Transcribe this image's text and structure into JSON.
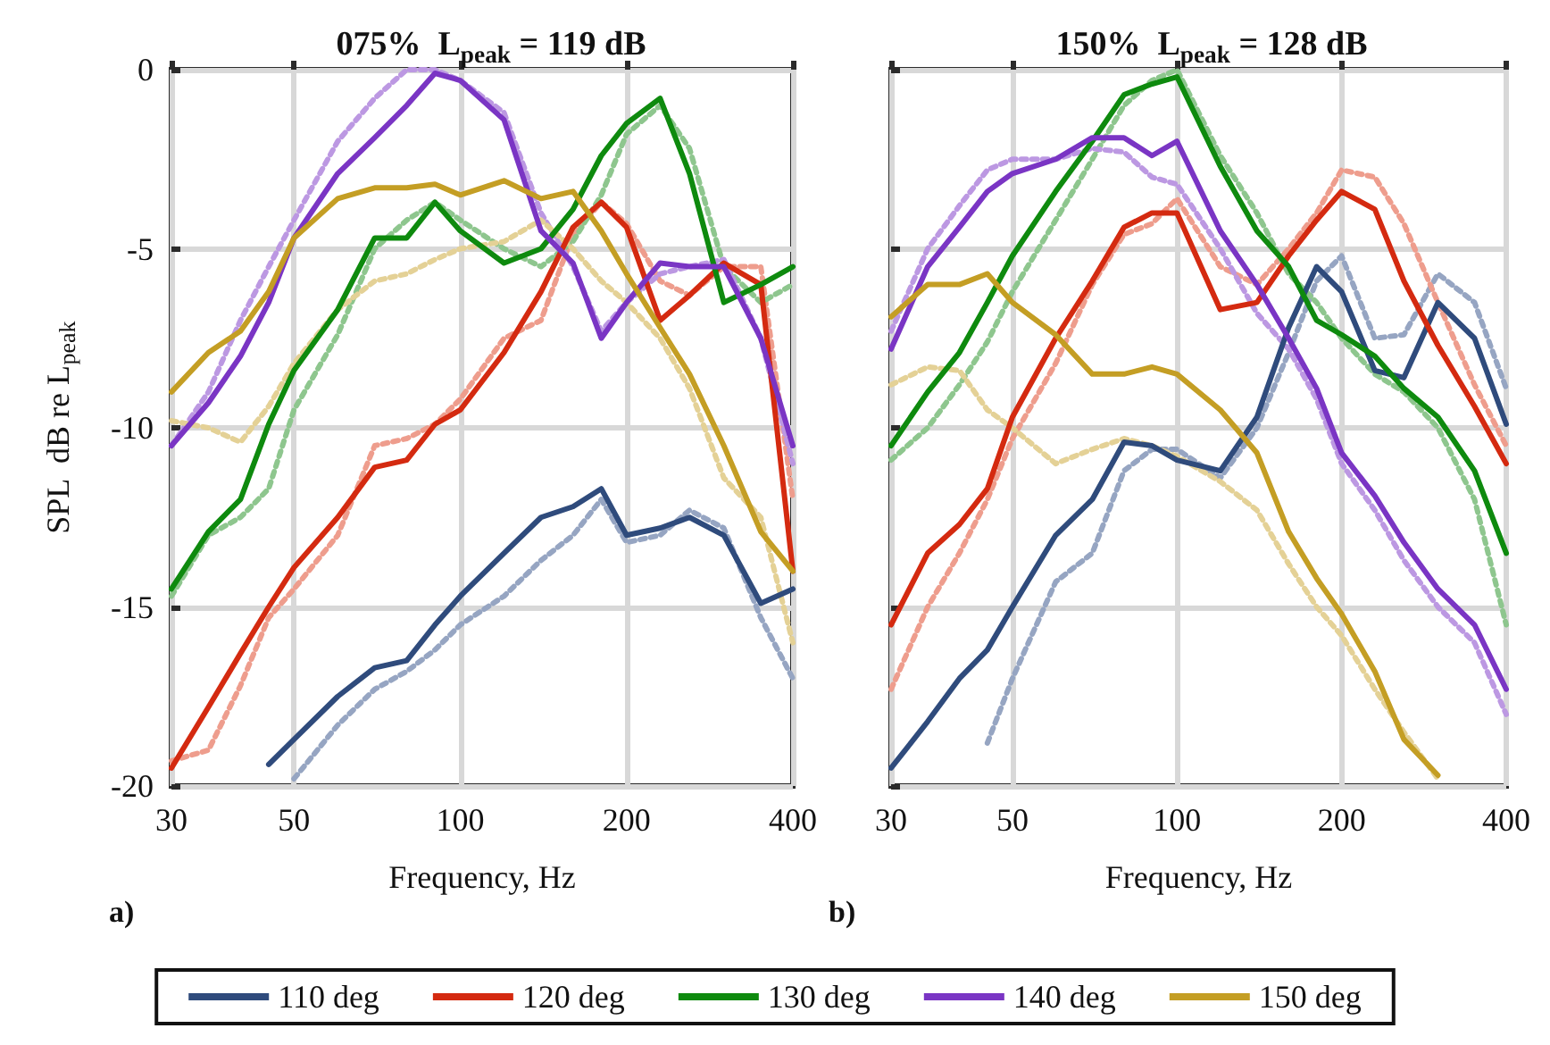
{
  "chart_data": [
    {
      "type": "line",
      "title": "075%  L$_{peak}$ = 119 dB",
      "xlabel": "Frequency, Hz",
      "ylabel": "SPL  dB re L$_{peak}$",
      "annotations": [
        "a)"
      ],
      "log": "x",
      "grid": true,
      "legend": "bottom",
      "marker": "none",
      "xlim": [
        30,
        400
      ],
      "xticks": [
        30,
        50,
        100,
        200,
        400
      ],
      "ylim": [
        -20,
        0
      ],
      "yticks": [
        0,
        -5,
        -10,
        -15,
        -20
      ],
      "x": [
        30,
        35,
        40,
        45,
        50,
        60,
        70,
        80,
        90,
        100,
        120,
        140,
        160,
        180,
        200,
        230,
        260,
        300,
        350,
        400
      ],
      "series": [
        {
          "name": "110 deg",
          "color": "#2f4b7c",
          "line_style": "solid",
          "values": [
            null,
            null,
            null,
            -19.4,
            -18.7,
            -17.5,
            -16.7,
            -16.5,
            -15.5,
            -14.7,
            -13.5,
            -12.5,
            -12.2,
            -11.7,
            -13.0,
            -12.8,
            -12.5,
            -13.0,
            -14.9,
            -14.5
          ]
        },
        {
          "name": "120 deg",
          "color": "#d42a10",
          "line_style": "solid",
          "values": [
            -19.5,
            -17.8,
            -16.3,
            -15.0,
            -13.9,
            -12.5,
            -11.1,
            -10.9,
            -9.9,
            -9.5,
            -7.9,
            -6.2,
            -4.4,
            -3.7,
            -4.4,
            -7.0,
            -6.3,
            -5.4,
            -6.0,
            -14.0
          ]
        },
        {
          "name": "130 deg",
          "color": "#0e8a0e",
          "line_style": "solid",
          "values": [
            -14.5,
            -12.9,
            -12.0,
            -9.9,
            -8.4,
            -6.7,
            -4.7,
            -4.7,
            -3.7,
            -4.5,
            -5.4,
            -5.0,
            -3.9,
            -2.4,
            -1.5,
            -0.8,
            -2.9,
            -6.5,
            -6.0,
            -5.5
          ]
        },
        {
          "name": "140 deg",
          "color": "#7a35c4",
          "line_style": "solid",
          "values": [
            -10.5,
            -9.3,
            -8.0,
            -6.5,
            -4.7,
            -2.9,
            -1.9,
            -1.0,
            -0.1,
            -0.3,
            -1.4,
            -4.5,
            -5.4,
            -7.5,
            -6.5,
            -5.4,
            -5.5,
            -5.5,
            -7.5,
            -10.5
          ]
        },
        {
          "name": "150 deg",
          "color": "#c49e24",
          "line_style": "solid",
          "values": [
            -9.0,
            -7.9,
            -7.3,
            -6.2,
            -4.7,
            -3.6,
            -3.3,
            -3.3,
            -3.2,
            -3.5,
            -3.1,
            -3.6,
            -3.4,
            -4.5,
            -5.7,
            -7.2,
            -8.5,
            -10.5,
            -12.9,
            -14.0
          ]
        },
        {
          "color": "#96a5c2",
          "line_style": "dotted",
          "values": [
            null,
            null,
            null,
            null,
            -19.8,
            -18.3,
            -17.3,
            -16.8,
            -16.2,
            -15.5,
            -14.7,
            -13.7,
            -13.0,
            -12.0,
            -13.2,
            -13.0,
            -12.3,
            -12.8,
            -15.3,
            -17.0
          ]
        },
        {
          "color": "#ee9d8d",
          "line_style": "dotted",
          "values": [
            -19.3,
            -19.0,
            -17.2,
            -15.3,
            -14.5,
            -13.0,
            -10.5,
            -10.3,
            -9.9,
            -9.2,
            -7.5,
            -7.0,
            -4.6,
            -3.7,
            -4.3,
            -5.9,
            -6.3,
            -5.5,
            -5.5,
            -12.0
          ]
        },
        {
          "color": "#8ec68e",
          "line_style": "dotted",
          "values": [
            -14.7,
            -13.0,
            -12.5,
            -11.7,
            -9.5,
            -7.4,
            -5.0,
            -4.2,
            -3.7,
            -4.2,
            -5.0,
            -5.5,
            -4.8,
            -3.5,
            -1.8,
            -1.0,
            -2.2,
            -5.5,
            -6.5,
            -6.0
          ]
        },
        {
          "color": "#bc98e2",
          "line_style": "dotted",
          "values": [
            -10.5,
            -9.0,
            -7.0,
            -5.5,
            -4.2,
            -2.0,
            -0.8,
            0,
            0,
            -0.3,
            -1.2,
            -4.0,
            -5.5,
            -7.3,
            -6.5,
            -5.7,
            -5.5,
            -5.3,
            -7.5,
            -11.0
          ]
        },
        {
          "color": "#e4d196",
          "line_style": "dotted",
          "values": [
            -9.8,
            -10.0,
            -10.4,
            -9.4,
            -8.2,
            -6.7,
            -5.9,
            -5.7,
            -5.3,
            -5.0,
            -4.8,
            -4.2,
            -5.0,
            -5.9,
            -6.5,
            -7.5,
            -8.9,
            -11.4,
            -12.5,
            -16.0
          ]
        }
      ]
    },
    {
      "type": "line",
      "title": "150%  L$_{peak}$ = 128 dB",
      "xlabel": "Frequency, Hz",
      "annotations": [
        "b)"
      ],
      "log": "x",
      "grid": true,
      "legend": false,
      "marker": "none",
      "tick_labels": "x",
      "xlim": [
        30,
        400
      ],
      "xticks": [
        30,
        50,
        100,
        200,
        400
      ],
      "ylim": [
        -20,
        0
      ],
      "yticks": [
        0,
        -5,
        -10,
        -15,
        -20
      ],
      "x": [
        30,
        35,
        40,
        45,
        50,
        60,
        70,
        80,
        90,
        100,
        120,
        140,
        160,
        180,
        200,
        230,
        260,
        300,
        350,
        400
      ],
      "series": [
        {
          "color": "#2f4b7c",
          "line_style": "solid",
          "values": [
            -19.5,
            -18.2,
            -17.0,
            -16.2,
            -15.0,
            -13.0,
            -12.0,
            -10.4,
            -10.5,
            -10.9,
            -11.2,
            -9.7,
            -7.2,
            -5.5,
            -6.2,
            -8.4,
            -8.6,
            -6.5,
            -7.5,
            -9.9
          ]
        },
        {
          "color": "#d42a10",
          "line_style": "solid",
          "values": [
            -15.5,
            -13.5,
            -12.7,
            -11.7,
            -9.7,
            -7.5,
            -5.9,
            -4.4,
            -4.0,
            -4.0,
            -6.7,
            -6.5,
            -5.2,
            -4.2,
            -3.4,
            -3.9,
            -5.9,
            -7.7,
            -9.4,
            -11.0
          ]
        },
        {
          "color": "#0e8a0e",
          "line_style": "solid",
          "values": [
            -10.5,
            -9.0,
            -7.9,
            -6.5,
            -5.2,
            -3.4,
            -2.0,
            -0.7,
            -0.4,
            -0.2,
            -2.7,
            -4.5,
            -5.5,
            -7.0,
            -7.4,
            -8.0,
            -8.9,
            -9.7,
            -11.2,
            -13.5
          ]
        },
        {
          "color": "#7a35c4",
          "line_style": "solid",
          "values": [
            -7.8,
            -5.5,
            -4.4,
            -3.4,
            -2.9,
            -2.5,
            -1.9,
            -1.9,
            -2.4,
            -2.0,
            -4.5,
            -6.0,
            -7.5,
            -8.9,
            -10.7,
            -11.9,
            -13.2,
            -14.5,
            -15.5,
            -17.3
          ]
        },
        {
          "color": "#c49e24",
          "line_style": "solid",
          "values": [
            -6.9,
            -6.0,
            -6.0,
            -5.7,
            -6.5,
            -7.4,
            -8.5,
            -8.5,
            -8.3,
            -8.5,
            -9.5,
            -10.7,
            -12.9,
            -14.2,
            -15.2,
            -16.8,
            -18.7,
            -19.7,
            null,
            null
          ]
        },
        {
          "color": "#96a5c2",
          "line_style": "dotted",
          "values": [
            null,
            null,
            null,
            -18.8,
            -17.0,
            -14.3,
            -13.5,
            -11.2,
            -10.6,
            -10.6,
            -11.4,
            -10.0,
            -7.9,
            -5.9,
            -5.2,
            -7.5,
            -7.4,
            -5.7,
            -6.5,
            -8.9
          ]
        },
        {
          "color": "#ee9d8d",
          "line_style": "dotted",
          "values": [
            -17.3,
            -15.0,
            -13.5,
            -12.0,
            -10.3,
            -8.2,
            -6.0,
            -4.6,
            -4.3,
            -3.6,
            -5.5,
            -6.0,
            -5.0,
            -4.0,
            -2.8,
            -3.0,
            -4.3,
            -6.5,
            -8.8,
            -10.5
          ]
        },
        {
          "color": "#8ec68e",
          "line_style": "dotted",
          "values": [
            -10.9,
            -10.0,
            -8.8,
            -7.6,
            -6.2,
            -4.2,
            -2.5,
            -1.0,
            -0.3,
            0,
            -2.4,
            -4.0,
            -5.7,
            -6.5,
            -7.5,
            -8.5,
            -9.0,
            -10.0,
            -12.0,
            -15.5
          ]
        },
        {
          "color": "#bc98e2",
          "line_style": "dotted",
          "values": [
            -7.3,
            -5.0,
            -3.8,
            -2.8,
            -2.5,
            -2.5,
            -2.2,
            -2.3,
            -3.0,
            -3.2,
            -5.0,
            -6.8,
            -7.8,
            -9.2,
            -11.0,
            -12.3,
            -13.7,
            -15.0,
            -16.0,
            -18.0
          ]
        },
        {
          "color": "#e4d196",
          "line_style": "dotted",
          "values": [
            -8.8,
            -8.3,
            -8.4,
            -9.5,
            -10.0,
            -11.0,
            -10.6,
            -10.3,
            -10.5,
            -10.8,
            -11.5,
            -12.3,
            -13.8,
            -15.0,
            -15.8,
            -17.3,
            -18.5,
            -19.8,
            null,
            null
          ]
        }
      ]
    }
  ]
}
